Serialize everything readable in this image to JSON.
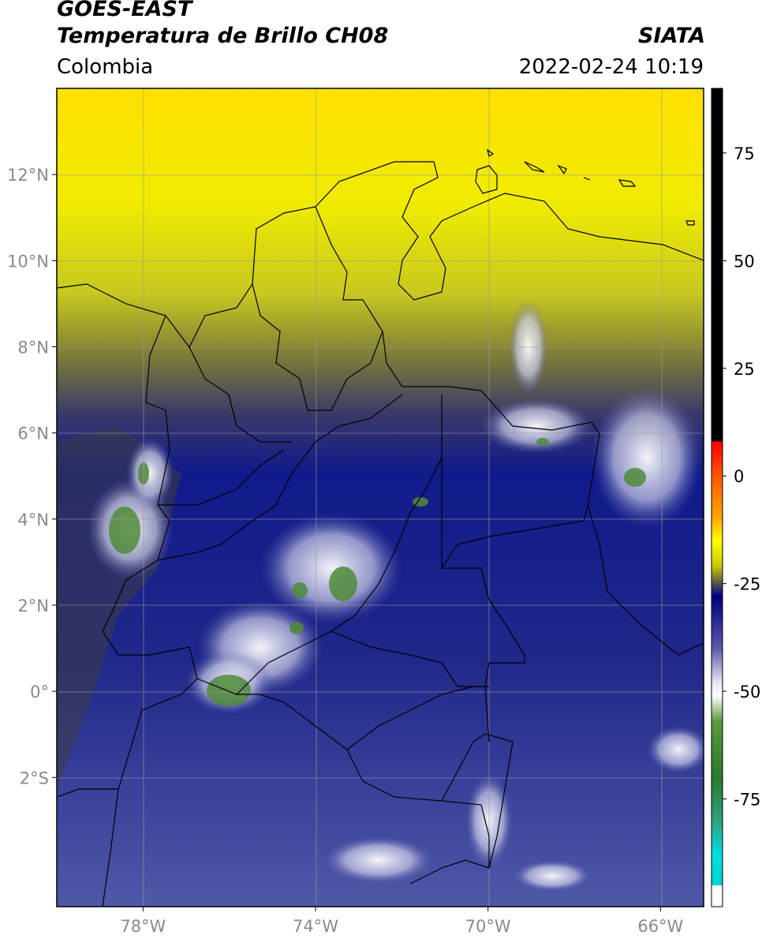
{
  "header": {
    "line1": "GOES-EAST",
    "line2": "Temperatura de Brillo CH08",
    "region": "Colombia",
    "brand": "SIATA",
    "timestamp": "2022-02-24 10:19"
  },
  "map": {
    "lon_range": [
      -80,
      -65
    ],
    "lat_range": [
      -5,
      14
    ],
    "lon_ticks": [
      {
        "value": -78,
        "label": "78°W"
      },
      {
        "value": -74,
        "label": "74°W"
      },
      {
        "value": -70,
        "label": "70°W"
      },
      {
        "value": -66,
        "label": "66°W"
      }
    ],
    "lat_ticks": [
      {
        "value": 12,
        "label": "12°N"
      },
      {
        "value": 10,
        "label": "10°N"
      },
      {
        "value": 8,
        "label": "8°N"
      },
      {
        "value": 6,
        "label": "6°N"
      },
      {
        "value": 4,
        "label": "4°N"
      },
      {
        "value": 2,
        "label": "2°N"
      },
      {
        "value": 0,
        "label": "0°"
      },
      {
        "value": -2,
        "label": "2°S"
      }
    ],
    "grid": true
  },
  "colorbar": {
    "range": [
      -100,
      90
    ],
    "ticks": [
      {
        "value": 75,
        "label": "75"
      },
      {
        "value": 50,
        "label": "50"
      },
      {
        "value": 25,
        "label": "25"
      },
      {
        "value": 0,
        "label": "0"
      },
      {
        "value": -25,
        "label": "-25"
      },
      {
        "value": -50,
        "label": "-50"
      },
      {
        "value": -75,
        "label": "-75"
      }
    ],
    "stops": [
      {
        "v": 90,
        "c": "#000000"
      },
      {
        "v": 8.1,
        "c": "#000000"
      },
      {
        "v": 8,
        "c": "#ff0000"
      },
      {
        "v": 0,
        "c": "#ff5500"
      },
      {
        "v": -10,
        "c": "#ffaa00"
      },
      {
        "v": -15,
        "c": "#ffff00"
      },
      {
        "v": -21,
        "c": "#c8c800"
      },
      {
        "v": -25,
        "c": "#505050"
      },
      {
        "v": -28,
        "c": "#000080"
      },
      {
        "v": -40,
        "c": "#5a5aa8"
      },
      {
        "v": -48,
        "c": "#e6e6f2"
      },
      {
        "v": -51,
        "c": "#ffffff"
      },
      {
        "v": -57,
        "c": "#5a9a3a"
      },
      {
        "v": -70,
        "c": "#2a7a2a"
      },
      {
        "v": -80,
        "c": "#30a080"
      },
      {
        "v": -88,
        "c": "#00e0e0"
      },
      {
        "v": -95,
        "c": "#00d0d0"
      },
      {
        "v": -95.1,
        "c": "#ffffff"
      },
      {
        "v": -100,
        "c": "#ffffff"
      }
    ]
  }
}
